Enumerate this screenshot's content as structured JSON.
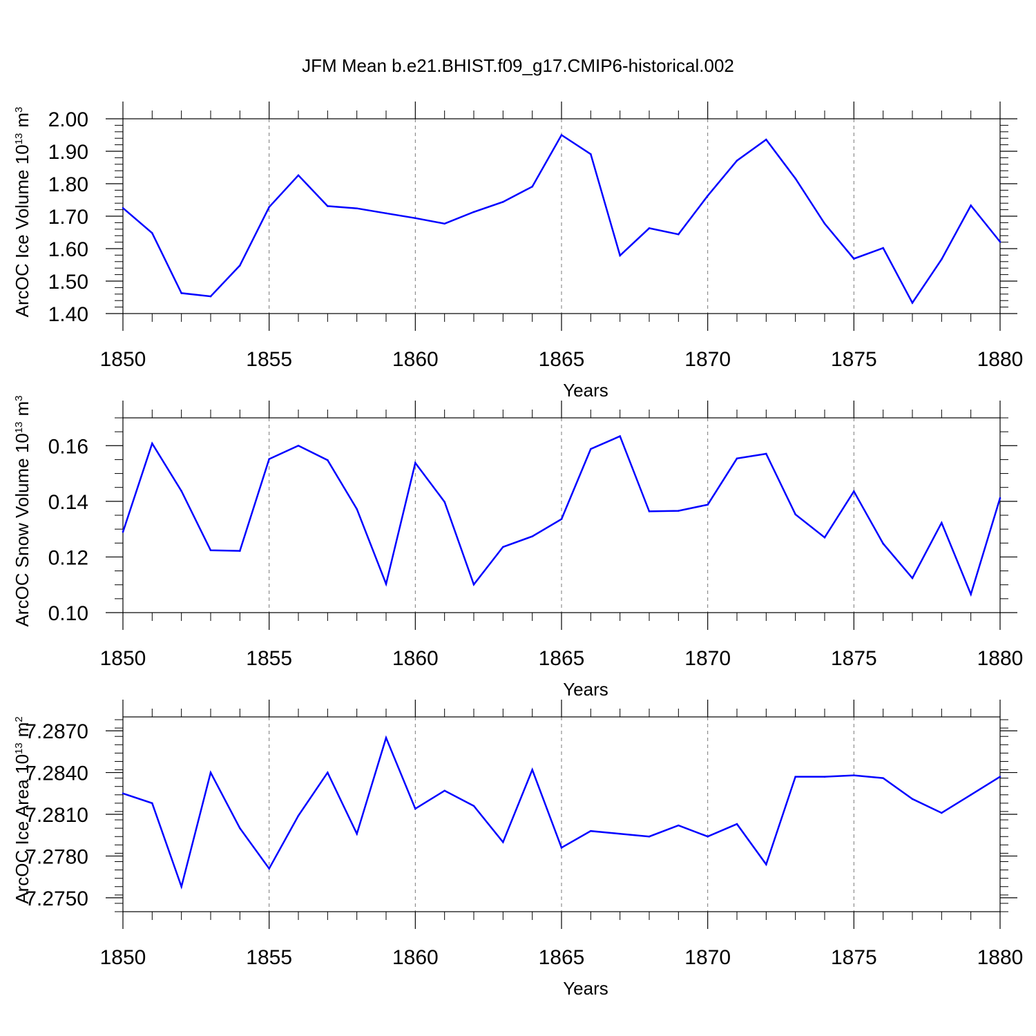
{
  "title": "JFM Mean b.e21.BHIST.f09_g17.CMIP6-historical.002",
  "colors": {
    "series": "#0000ff",
    "axes": "#000000",
    "grid": "#777777"
  },
  "chart_data": [
    {
      "type": "line",
      "title": "JFM Mean b.e21.BHIST.f09_g17.CMIP6-historical.002",
      "xlabel": "Years",
      "ylabel": "ArcOC Ice Volume 10",
      "ylabel_exp": "13",
      "ylabel_unit": "m",
      "ylabel_unit_exp": "3",
      "xlim": [
        1850,
        1880
      ],
      "ylim": [
        1.4,
        2.0
      ],
      "xticks": [
        1850,
        1855,
        1860,
        1865,
        1870,
        1875,
        1880
      ],
      "xtick_labels": [
        "1850",
        "1855",
        "1860",
        "1865",
        "1870",
        "1875",
        "1880"
      ],
      "yticks": [
        1.4,
        1.5,
        1.6,
        1.7,
        1.8,
        1.9,
        2.0
      ],
      "ytick_labels": [
        "1.40",
        "1.50",
        "1.60",
        "1.70",
        "1.80",
        "1.90",
        "2.00"
      ],
      "yminor_step": 0.02,
      "grid": "vertical-dashed",
      "x": [
        1850,
        1851,
        1852,
        1853,
        1854,
        1855,
        1856,
        1857,
        1858,
        1859,
        1860,
        1861,
        1862,
        1863,
        1864,
        1865,
        1866,
        1867,
        1868,
        1869,
        1870,
        1871,
        1872,
        1873,
        1874,
        1875,
        1876,
        1877,
        1878,
        1879,
        1880
      ],
      "y": [
        1.725,
        1.648,
        1.463,
        1.453,
        1.548,
        1.728,
        1.826,
        1.731,
        1.724,
        1.709,
        1.694,
        1.677,
        1.713,
        1.744,
        1.791,
        1.95,
        1.891,
        1.579,
        1.663,
        1.644,
        1.763,
        1.871,
        1.936,
        1.816,
        1.677,
        1.569,
        1.602,
        1.433,
        1.567,
        1.733,
        1.621
      ]
    },
    {
      "type": "line",
      "xlabel": "Years",
      "ylabel": "ArcOC Snow Volume 10",
      "ylabel_exp": "13",
      "ylabel_unit": "m",
      "ylabel_unit_exp": "3",
      "xlim": [
        1850,
        1880
      ],
      "ylim": [
        0.1,
        0.17
      ],
      "xticks": [
        1850,
        1855,
        1860,
        1865,
        1870,
        1875,
        1880
      ],
      "xtick_labels": [
        "1850",
        "1855",
        "1860",
        "1865",
        "1870",
        "1875",
        "1880"
      ],
      "yticks": [
        0.1,
        0.12,
        0.14,
        0.16
      ],
      "ytick_labels": [
        "0.10",
        "0.12",
        "0.14",
        "0.16"
      ],
      "yminor_step": 0.005,
      "grid": "vertical-dashed",
      "x": [
        1850,
        1851,
        1852,
        1853,
        1854,
        1855,
        1856,
        1857,
        1858,
        1859,
        1860,
        1861,
        1862,
        1863,
        1864,
        1865,
        1866,
        1867,
        1868,
        1869,
        1870,
        1871,
        1872,
        1873,
        1874,
        1875,
        1876,
        1877,
        1878,
        1879,
        1880
      ],
      "y": [
        0.129,
        0.1608,
        0.1437,
        0.1224,
        0.1222,
        0.1552,
        0.16,
        0.1548,
        0.1372,
        0.1103,
        0.1538,
        0.1398,
        0.1101,
        0.1236,
        0.1274,
        0.1336,
        0.1588,
        0.1634,
        0.1364,
        0.1366,
        0.1388,
        0.1554,
        0.1571,
        0.1353,
        0.127,
        0.1436,
        0.1248,
        0.1124,
        0.1323,
        0.1066,
        0.1412
      ]
    },
    {
      "type": "line",
      "xlabel": "Years",
      "ylabel": "ArcOC Ice Area 10",
      "ylabel_exp": "13",
      "ylabel_unit": "m",
      "ylabel_unit_exp": "2",
      "xlim": [
        1850,
        1880
      ],
      "ylim": [
        7.274,
        7.288
      ],
      "xticks": [
        1850,
        1855,
        1860,
        1865,
        1870,
        1875,
        1880
      ],
      "xtick_labels": [
        "1850",
        "1855",
        "1860",
        "1865",
        "1870",
        "1875",
        "1880"
      ],
      "yticks": [
        7.275,
        7.278,
        7.281,
        7.284,
        7.287
      ],
      "ytick_labels": [
        "7.2750",
        "7.2780",
        "7.2810",
        "7.2840",
        "7.2870"
      ],
      "yminor_step": 0.0006,
      "grid": "vertical-dashed",
      "x": [
        1850,
        1851,
        1852,
        1853,
        1854,
        1855,
        1856,
        1857,
        1858,
        1859,
        1860,
        1861,
        1862,
        1863,
        1864,
        1865,
        1866,
        1867,
        1868,
        1869,
        1870,
        1871,
        1872,
        1873,
        1874,
        1875,
        1876,
        1877,
        1878,
        1879,
        1880
      ],
      "y": [
        7.2825,
        7.2818,
        7.2758,
        7.284,
        7.28,
        7.2771,
        7.2809,
        7.284,
        7.2796,
        7.2865,
        7.2814,
        7.2827,
        7.2816,
        7.279,
        7.2842,
        7.2786,
        7.2798,
        7.2796,
        7.2794,
        7.2802,
        7.2794,
        7.2803,
        7.2774,
        7.2837,
        7.2837,
        7.2838,
        7.2836,
        7.2821,
        7.2811,
        7.2824,
        7.2837
      ]
    }
  ]
}
